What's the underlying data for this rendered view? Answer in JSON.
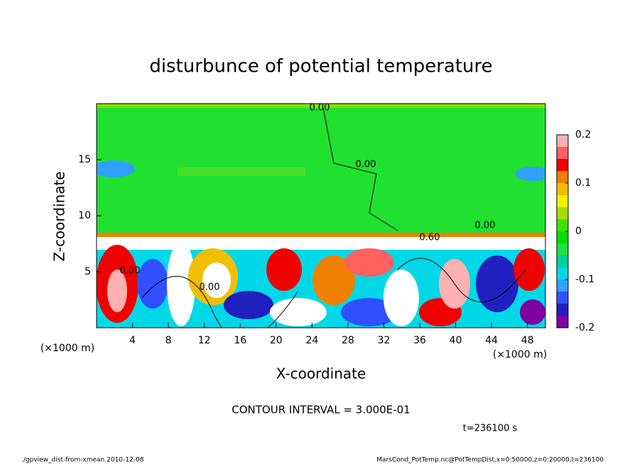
{
  "chart_data": {
    "type": "contour",
    "title": "disturbunce of potential temperature",
    "xlabel": "X-coordinate",
    "ylabel": "Z-coordinate",
    "x_unit_label": "(×1000 m)",
    "y_unit_label": "(×1000 m)",
    "xlim": [
      0,
      50
    ],
    "xticks": [
      4,
      8,
      12,
      16,
      20,
      24,
      28,
      32,
      36,
      40,
      44,
      48
    ],
    "ylim": [
      0,
      20
    ],
    "yticks": [
      5,
      10,
      15
    ],
    "colorbar": {
      "lim": [
        -0.2,
        0.2
      ],
      "ticks": [
        -0.2,
        -0.1,
        0,
        0.1,
        0.2
      ],
      "colors": [
        "#8000a0",
        "#2020c0",
        "#3050ff",
        "#30a0ff",
        "#00d8e8",
        "#00d0a0",
        "#20e040",
        "#00e000",
        "#40e000",
        "#a0e000",
        "#f0f000",
        "#f0c000",
        "#f08000",
        "#f00000",
        "#ff6060",
        "#ffb0b0"
      ]
    },
    "contour_labels": [
      "0.00",
      "0.00",
      "0.00",
      "0.00",
      "0.00",
      "0.60"
    ],
    "annotations": [
      "CONTOUR INTERVAL = 3.000E-01",
      "t=236100 s"
    ],
    "footer_left": "./gpview_dist-from-xmean  2010-12-08",
    "footer_right": "MarsCond_PotTemp.nc@PotTempDist,x=0:50000,z=0:20000,t=236100"
  }
}
